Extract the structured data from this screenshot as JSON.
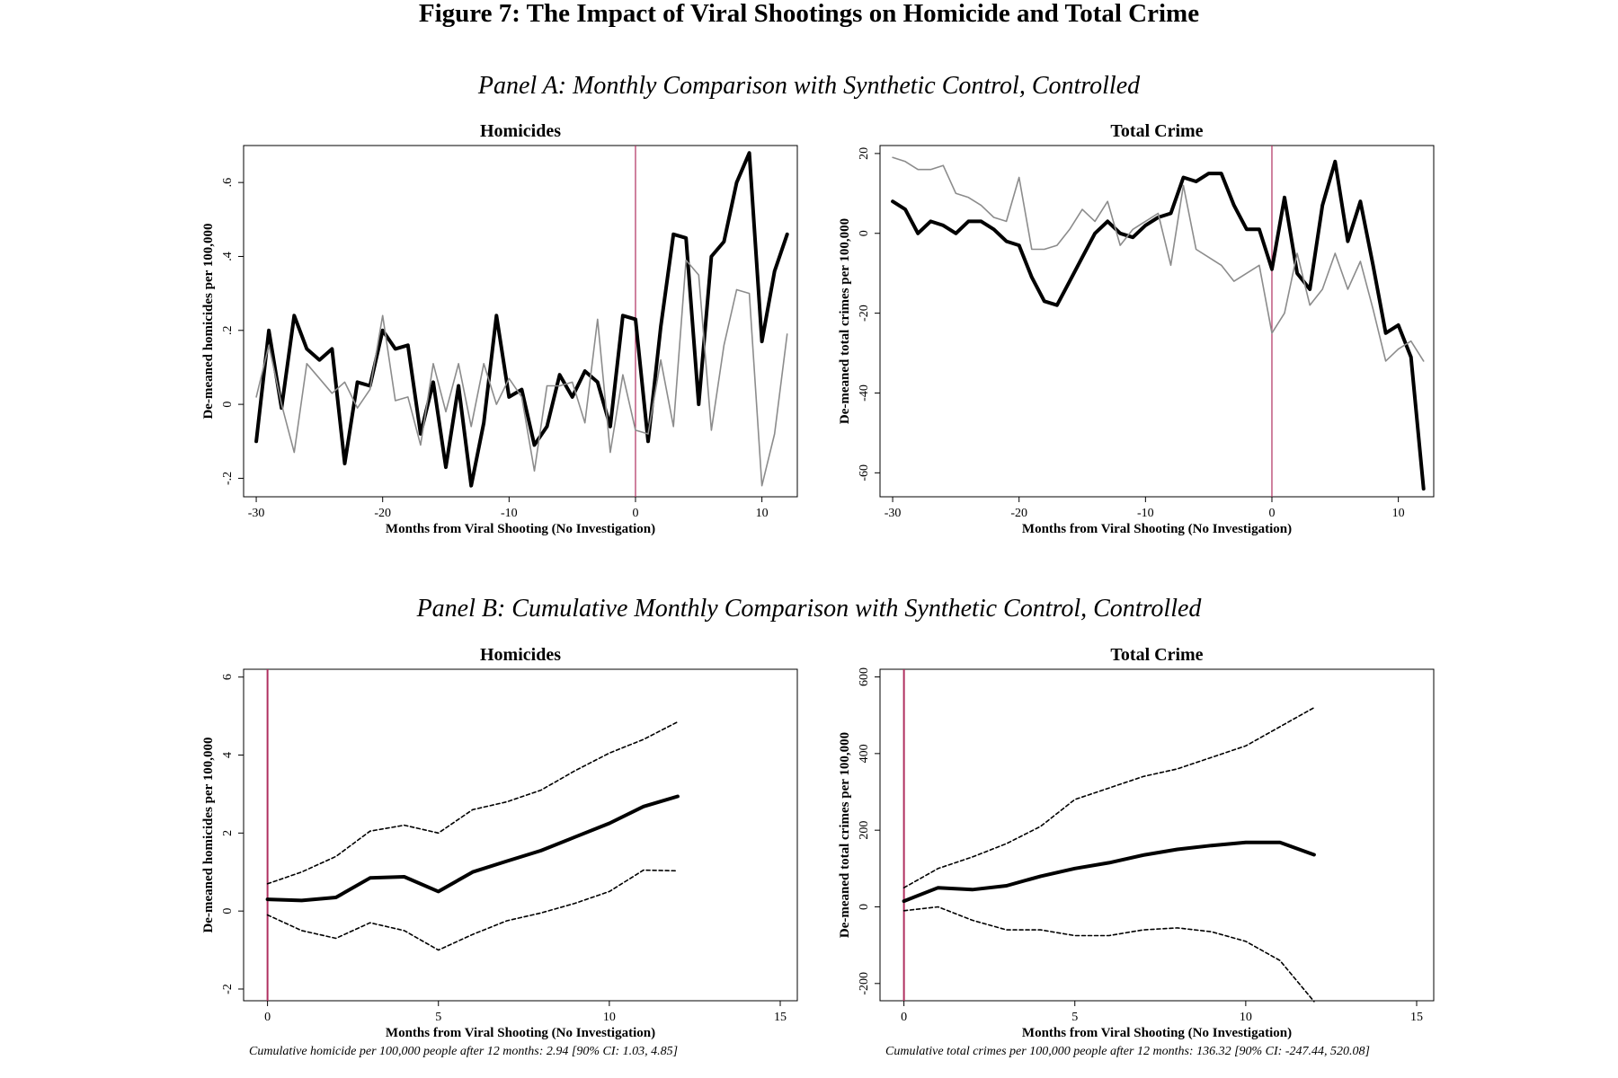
{
  "figure_title": "Figure 7: The Impact of Viral Shootings on Homicide and Total Crime",
  "panel_a_title": "Panel A: Monthly Comparison with Synthetic Control, Controlled",
  "panel_b_title": "Panel B: Cumulative Monthly Comparison with Synthetic Control, Controlled",
  "captions": {
    "homicides": "Cumulative homicide per 100,000 people after 12 months: 2.94 [90% CI: 1.03, 4.85]",
    "total_crime": "Cumulative total crimes per 100,000 people after 12 months: 136.32 [90% CI: -247.44, 520.08]"
  },
  "colors": {
    "treated": "#000000",
    "synthetic": "#8c8c8c",
    "event_line": "#b03060"
  },
  "chart_data": [
    {
      "type": "line",
      "title": "Homicides",
      "xlabel": "Months from Viral Shooting (No Investigation)",
      "ylabel": "De-meaned homicides per 100,000",
      "xlim": [
        -31,
        12.8
      ],
      "ylim": [
        -0.25,
        0.7
      ],
      "xticks": [
        -30,
        -20,
        -10,
        0,
        10
      ],
      "xtick_labels": [
        "-30",
        "-20",
        "-10",
        "0",
        "10"
      ],
      "yticks": [
        -0.2,
        0,
        0.2,
        0.4,
        0.6
      ],
      "ytick_labels": [
        "-.2",
        "0",
        ".2",
        ".4",
        ".6"
      ],
      "vline_x": 0,
      "x": [
        -30,
        -29,
        -28,
        -27,
        -26,
        -25,
        -24,
        -23,
        -22,
        -21,
        -20,
        -19,
        -18,
        -17,
        -16,
        -15,
        -14,
        -13,
        -12,
        -11,
        -10,
        -9,
        -8,
        -7,
        -6,
        -5,
        -4,
        -3,
        -2,
        -1,
        0,
        1,
        2,
        3,
        4,
        5,
        6,
        7,
        8,
        9,
        10,
        11,
        12
      ],
      "series": [
        {
          "values": [
            -0.1,
            0.2,
            -0.01,
            0.24,
            0.15,
            0.12,
            0.15,
            -0.16,
            0.06,
            0.05,
            0.2,
            0.15,
            0.16,
            -0.08,
            0.06,
            -0.17,
            0.05,
            -0.22,
            -0.05,
            0.24,
            0.02,
            0.04,
            -0.11,
            -0.06,
            0.08,
            0.02,
            0.09,
            0.06,
            -0.06,
            0.24,
            0.23,
            -0.1,
            0.21,
            0.46,
            0.45,
            0.0,
            0.4,
            0.44,
            0.6,
            0.68,
            0.17,
            0.36,
            0.46
          ],
          "style": "thick"
        },
        {
          "values": [
            0.02,
            0.16,
            0.0,
            -0.13,
            0.11,
            0.07,
            0.03,
            0.06,
            -0.01,
            0.04,
            0.24,
            0.01,
            0.02,
            -0.11,
            0.11,
            -0.02,
            0.11,
            -0.06,
            0.11,
            0.0,
            0.07,
            0.02,
            -0.18,
            0.05,
            0.05,
            0.06,
            -0.05,
            0.23,
            -0.13,
            0.08,
            -0.07,
            -0.08,
            0.12,
            -0.06,
            0.39,
            0.35,
            -0.07,
            0.16,
            0.31,
            0.3,
            -0.22,
            -0.08,
            0.19
          ],
          "style": "thin"
        }
      ]
    },
    {
      "type": "line",
      "title": "Total Crime",
      "xlabel": "Months from Viral Shooting (No Investigation)",
      "ylabel": "De-meaned total crimes per 100,000",
      "xlim": [
        -31,
        12.8
      ],
      "ylim": [
        -66,
        22
      ],
      "xticks": [
        -30,
        -20,
        -10,
        0,
        10
      ],
      "xtick_labels": [
        "-30",
        "-20",
        "-10",
        "0",
        "10"
      ],
      "yticks": [
        -60,
        -40,
        -20,
        0,
        20
      ],
      "ytick_labels": [
        "-60",
        "-40",
        "-20",
        "0",
        "20"
      ],
      "vline_x": 0,
      "x": [
        -30,
        -29,
        -28,
        -27,
        -26,
        -25,
        -24,
        -23,
        -22,
        -21,
        -20,
        -19,
        -18,
        -17,
        -16,
        -15,
        -14,
        -13,
        -12,
        -11,
        -10,
        -9,
        -8,
        -7,
        -6,
        -5,
        -4,
        -3,
        -2,
        -1,
        0,
        1,
        2,
        3,
        4,
        5,
        6,
        7,
        8,
        9,
        10,
        11,
        12
      ],
      "series": [
        {
          "values": [
            8,
            6,
            0,
            3,
            2,
            0,
            3,
            3,
            1,
            -2,
            -3,
            -11,
            -17,
            -18,
            -12,
            -6,
            0,
            3,
            0,
            -1,
            2,
            4,
            5,
            14,
            13,
            15,
            15,
            7,
            1,
            1,
            -9,
            9,
            -10,
            -14,
            7,
            18,
            -2,
            8,
            -8,
            -25,
            -23,
            -31,
            -64
          ],
          "style": "thick"
        },
        {
          "values": [
            19,
            18,
            16,
            16,
            17,
            10,
            9,
            7,
            4,
            3,
            14,
            -4,
            -4,
            -3,
            1,
            6,
            3,
            8,
            -3,
            1,
            3,
            5,
            -8,
            12,
            -4,
            -6,
            -8,
            -12,
            -10,
            -8,
            -25,
            -20,
            -5,
            -18,
            -14,
            -5,
            -14,
            -7,
            -19,
            -32,
            -29,
            -27,
            -32
          ],
          "style": "thin"
        }
      ]
    },
    {
      "type": "line",
      "title": "Homicides",
      "xlabel": "Months from Viral Shooting (No Investigation)",
      "ylabel": "De-meaned homicides per 100,000",
      "xlim": [
        -0.7,
        15.5
      ],
      "ylim": [
        -2.3,
        6.2
      ],
      "xticks": [
        0,
        5,
        10,
        15
      ],
      "xtick_labels": [
        "0",
        "5",
        "10",
        "15"
      ],
      "yticks": [
        -2,
        0,
        2,
        4,
        6
      ],
      "ytick_labels": [
        "-2",
        "0",
        "2",
        "4",
        "6"
      ],
      "vline_x": 0,
      "x": [
        0,
        1,
        2,
        3,
        4,
        5,
        6,
        7,
        8,
        9,
        10,
        11,
        12
      ],
      "series": [
        {
          "values": [
            0.3,
            0.27,
            0.35,
            0.85,
            0.88,
            0.5,
            1.0,
            1.28,
            1.55,
            1.9,
            2.25,
            2.68,
            2.94
          ],
          "style": "thick"
        },
        {
          "values": [
            0.7,
            1.0,
            1.4,
            2.05,
            2.2,
            2.0,
            2.6,
            2.8,
            3.1,
            3.6,
            4.05,
            4.4,
            4.85
          ],
          "style": "dashed"
        },
        {
          "values": [
            -0.1,
            -0.5,
            -0.7,
            -0.3,
            -0.5,
            -1.0,
            -0.6,
            -0.25,
            -0.05,
            0.2,
            0.5,
            1.05,
            1.03
          ],
          "style": "dashed"
        }
      ]
    },
    {
      "type": "line",
      "title": "Total Crime",
      "xlabel": "Months from Viral Shooting (No Investigation)",
      "ylabel": "De-meaned total crimes per 100,000",
      "xlim": [
        -0.7,
        15.5
      ],
      "ylim": [
        -245,
        620
      ],
      "xticks": [
        0,
        5,
        10,
        15
      ],
      "xtick_labels": [
        "0",
        "5",
        "10",
        "15"
      ],
      "yticks": [
        -200,
        0,
        200,
        400,
        600
      ],
      "ytick_labels": [
        "-200",
        "0",
        "200",
        "400",
        "600"
      ],
      "vline_x": 0,
      "x": [
        0,
        1,
        2,
        3,
        4,
        5,
        6,
        7,
        8,
        9,
        10,
        11,
        12
      ],
      "series": [
        {
          "values": [
            15,
            50,
            45,
            55,
            80,
            100,
            115,
            135,
            150,
            160,
            168,
            168,
            136
          ],
          "style": "thick"
        },
        {
          "values": [
            50,
            100,
            130,
            165,
            210,
            280,
            310,
            340,
            360,
            390,
            420,
            470,
            520
          ],
          "style": "dashed"
        },
        {
          "values": [
            -10,
            0,
            -35,
            -60,
            -60,
            -75,
            -75,
            -60,
            -55,
            -65,
            -90,
            -140,
            -247
          ],
          "style": "dashed"
        }
      ]
    }
  ]
}
